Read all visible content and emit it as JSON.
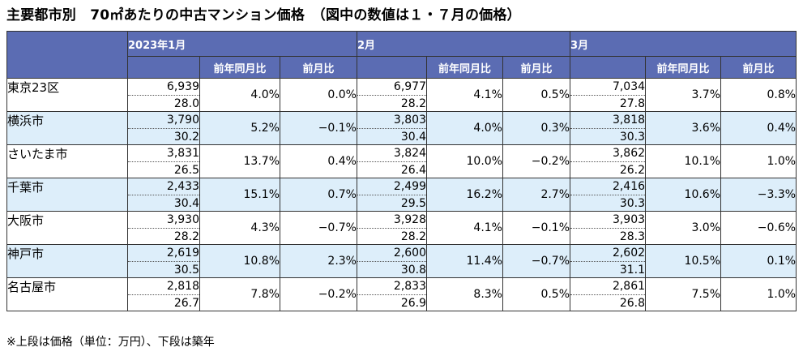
{
  "title": "主要都市別　70㎡あたりの中古マンション価格　（図中の数値は１・７月の価格）",
  "note": "※上段は価格（単位：万円）、下段は築年",
  "months": [
    "2023年1月",
    "2月",
    "3月"
  ],
  "sub_headers": {
    "yoy": "前年同月比",
    "mom": "前月比"
  },
  "rows": [
    {
      "city": "東京23区",
      "m": [
        {
          "price": "6,939",
          "age": "28.0",
          "yoy": "4.0%",
          "mom": "0.0%"
        },
        {
          "price": "6,977",
          "age": "28.2",
          "yoy": "4.1%",
          "mom": "0.5%"
        },
        {
          "price": "7,034",
          "age": "27.8",
          "yoy": "3.7%",
          "mom": "0.8%"
        }
      ]
    },
    {
      "city": "横浜市",
      "m": [
        {
          "price": "3,790",
          "age": "30.2",
          "yoy": "5.2%",
          "mom": "−0.1%"
        },
        {
          "price": "3,803",
          "age": "30.4",
          "yoy": "4.0%",
          "mom": "0.3%"
        },
        {
          "price": "3,818",
          "age": "30.3",
          "yoy": "3.6%",
          "mom": "0.4%"
        }
      ]
    },
    {
      "city": "さいたま市",
      "m": [
        {
          "price": "3,831",
          "age": "26.5",
          "yoy": "13.7%",
          "mom": "0.4%"
        },
        {
          "price": "3,824",
          "age": "26.4",
          "yoy": "10.0%",
          "mom": "−0.2%"
        },
        {
          "price": "3,862",
          "age": "26.2",
          "yoy": "10.1%",
          "mom": "1.0%"
        }
      ]
    },
    {
      "city": "千葉市",
      "m": [
        {
          "price": "2,433",
          "age": "30.4",
          "yoy": "15.1%",
          "mom": "0.7%"
        },
        {
          "price": "2,499",
          "age": "29.5",
          "yoy": "16.2%",
          "mom": "2.7%"
        },
        {
          "price": "2,416",
          "age": "30.3",
          "yoy": "10.6%",
          "mom": "−3.3%"
        }
      ]
    },
    {
      "city": "大阪市",
      "m": [
        {
          "price": "3,930",
          "age": "28.2",
          "yoy": "4.3%",
          "mom": "−0.7%"
        },
        {
          "price": "3,928",
          "age": "28.2",
          "yoy": "4.1%",
          "mom": "−0.1%"
        },
        {
          "price": "3,903",
          "age": "28.3",
          "yoy": "3.0%",
          "mom": "−0.6%"
        }
      ]
    },
    {
      "city": "神戸市",
      "m": [
        {
          "price": "2,619",
          "age": "30.5",
          "yoy": "10.8%",
          "mom": "2.3%"
        },
        {
          "price": "2,600",
          "age": "30.8",
          "yoy": "11.4%",
          "mom": "−0.7%"
        },
        {
          "price": "2,602",
          "age": "31.1",
          "yoy": "10.5%",
          "mom": "0.1%"
        }
      ]
    },
    {
      "city": "名古屋市",
      "m": [
        {
          "price": "2,818",
          "age": "26.7",
          "yoy": "7.8%",
          "mom": "−0.2%"
        },
        {
          "price": "2,833",
          "age": "26.9",
          "yoy": "8.3%",
          "mom": "0.5%"
        },
        {
          "price": "2,861",
          "age": "26.8",
          "yoy": "7.5%",
          "mom": "1.0%"
        }
      ]
    }
  ]
}
